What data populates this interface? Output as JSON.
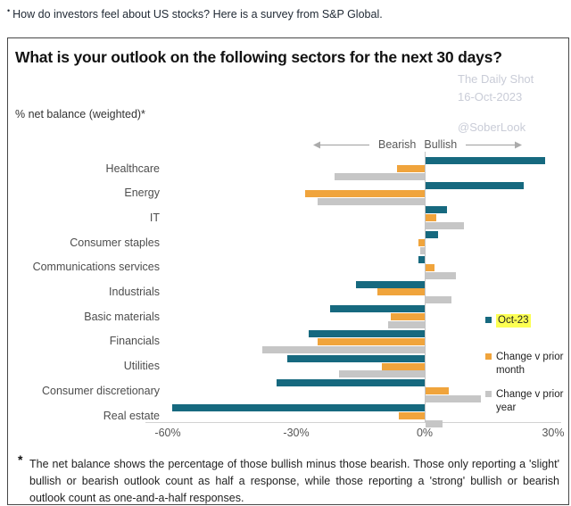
{
  "intro": {
    "bullet": "•",
    "text": "How do investors feel about US stocks? Here is a survey from S&P Global."
  },
  "card": {
    "title": "What is your outlook on the following sectors for the next 30 days?",
    "subtitle": "% net balance (weighted)*",
    "watermark": {
      "source": "The Daily Shot",
      "date": "16-Oct-2023",
      "handle": "@SoberLook"
    },
    "direction_labels": {
      "bearish": "Bearish",
      "bullish": "Bullish"
    },
    "footnote_marker": "*",
    "footnote": "The net balance shows the percentage of those bullish minus those bearish. Those only reporting a 'slight' bullish or bearish outlook count as half a response, while those reporting a 'strong' bullish or bearish outlook count as one-and-a-half responses."
  },
  "legend": [
    {
      "label": "Oct-23",
      "color": "#16697f",
      "highlighted": true,
      "highlight_color": "#fcff52"
    },
    {
      "label": "Change v prior month",
      "color": "#f0a43c",
      "highlighted": false
    },
    {
      "label": "Change v prior year",
      "color": "#c6c6c6",
      "highlighted": false
    }
  ],
  "chart_data": {
    "type": "bar",
    "orientation": "horizontal",
    "title": "What is your outlook on the following sectors for the next 30 days?",
    "subtitle": "% net balance (weighted)*",
    "xlabel": "% net balance (weighted)",
    "ylabel": "",
    "categories": [
      "Healthcare",
      "Energy",
      "IT",
      "Consumer staples",
      "Communications services",
      "Industrials",
      "Basic materials",
      "Financials",
      "Utilities",
      "Consumer discretionary",
      "Real estate"
    ],
    "series": [
      {
        "name": "Oct-23",
        "color": "#16697f",
        "values": [
          28,
          23,
          5,
          3,
          -1.5,
          -16,
          -22,
          -27,
          -32,
          -34.5,
          -59
        ]
      },
      {
        "name": "Change v prior month",
        "color": "#f0a43c",
        "values": [
          -6.5,
          -28,
          2.5,
          -1.5,
          2,
          -11,
          -8,
          -25,
          -10,
          5.5,
          -6
        ]
      },
      {
        "name": "Change v prior year",
        "color": "#c6c6c6",
        "values": [
          -21,
          -25,
          9,
          -1,
          7,
          6,
          -8.5,
          -38,
          -20,
          13,
          4
        ]
      }
    ],
    "x_ticks": [
      "-60%",
      "-30%",
      "0%",
      "30%"
    ],
    "x_tick_values": [
      -60,
      -30,
      0,
      30
    ],
    "xlim": [
      -65,
      32
    ],
    "grid": false,
    "legend_position": "right",
    "annotations": [
      "Bearish",
      "Bullish"
    ]
  }
}
